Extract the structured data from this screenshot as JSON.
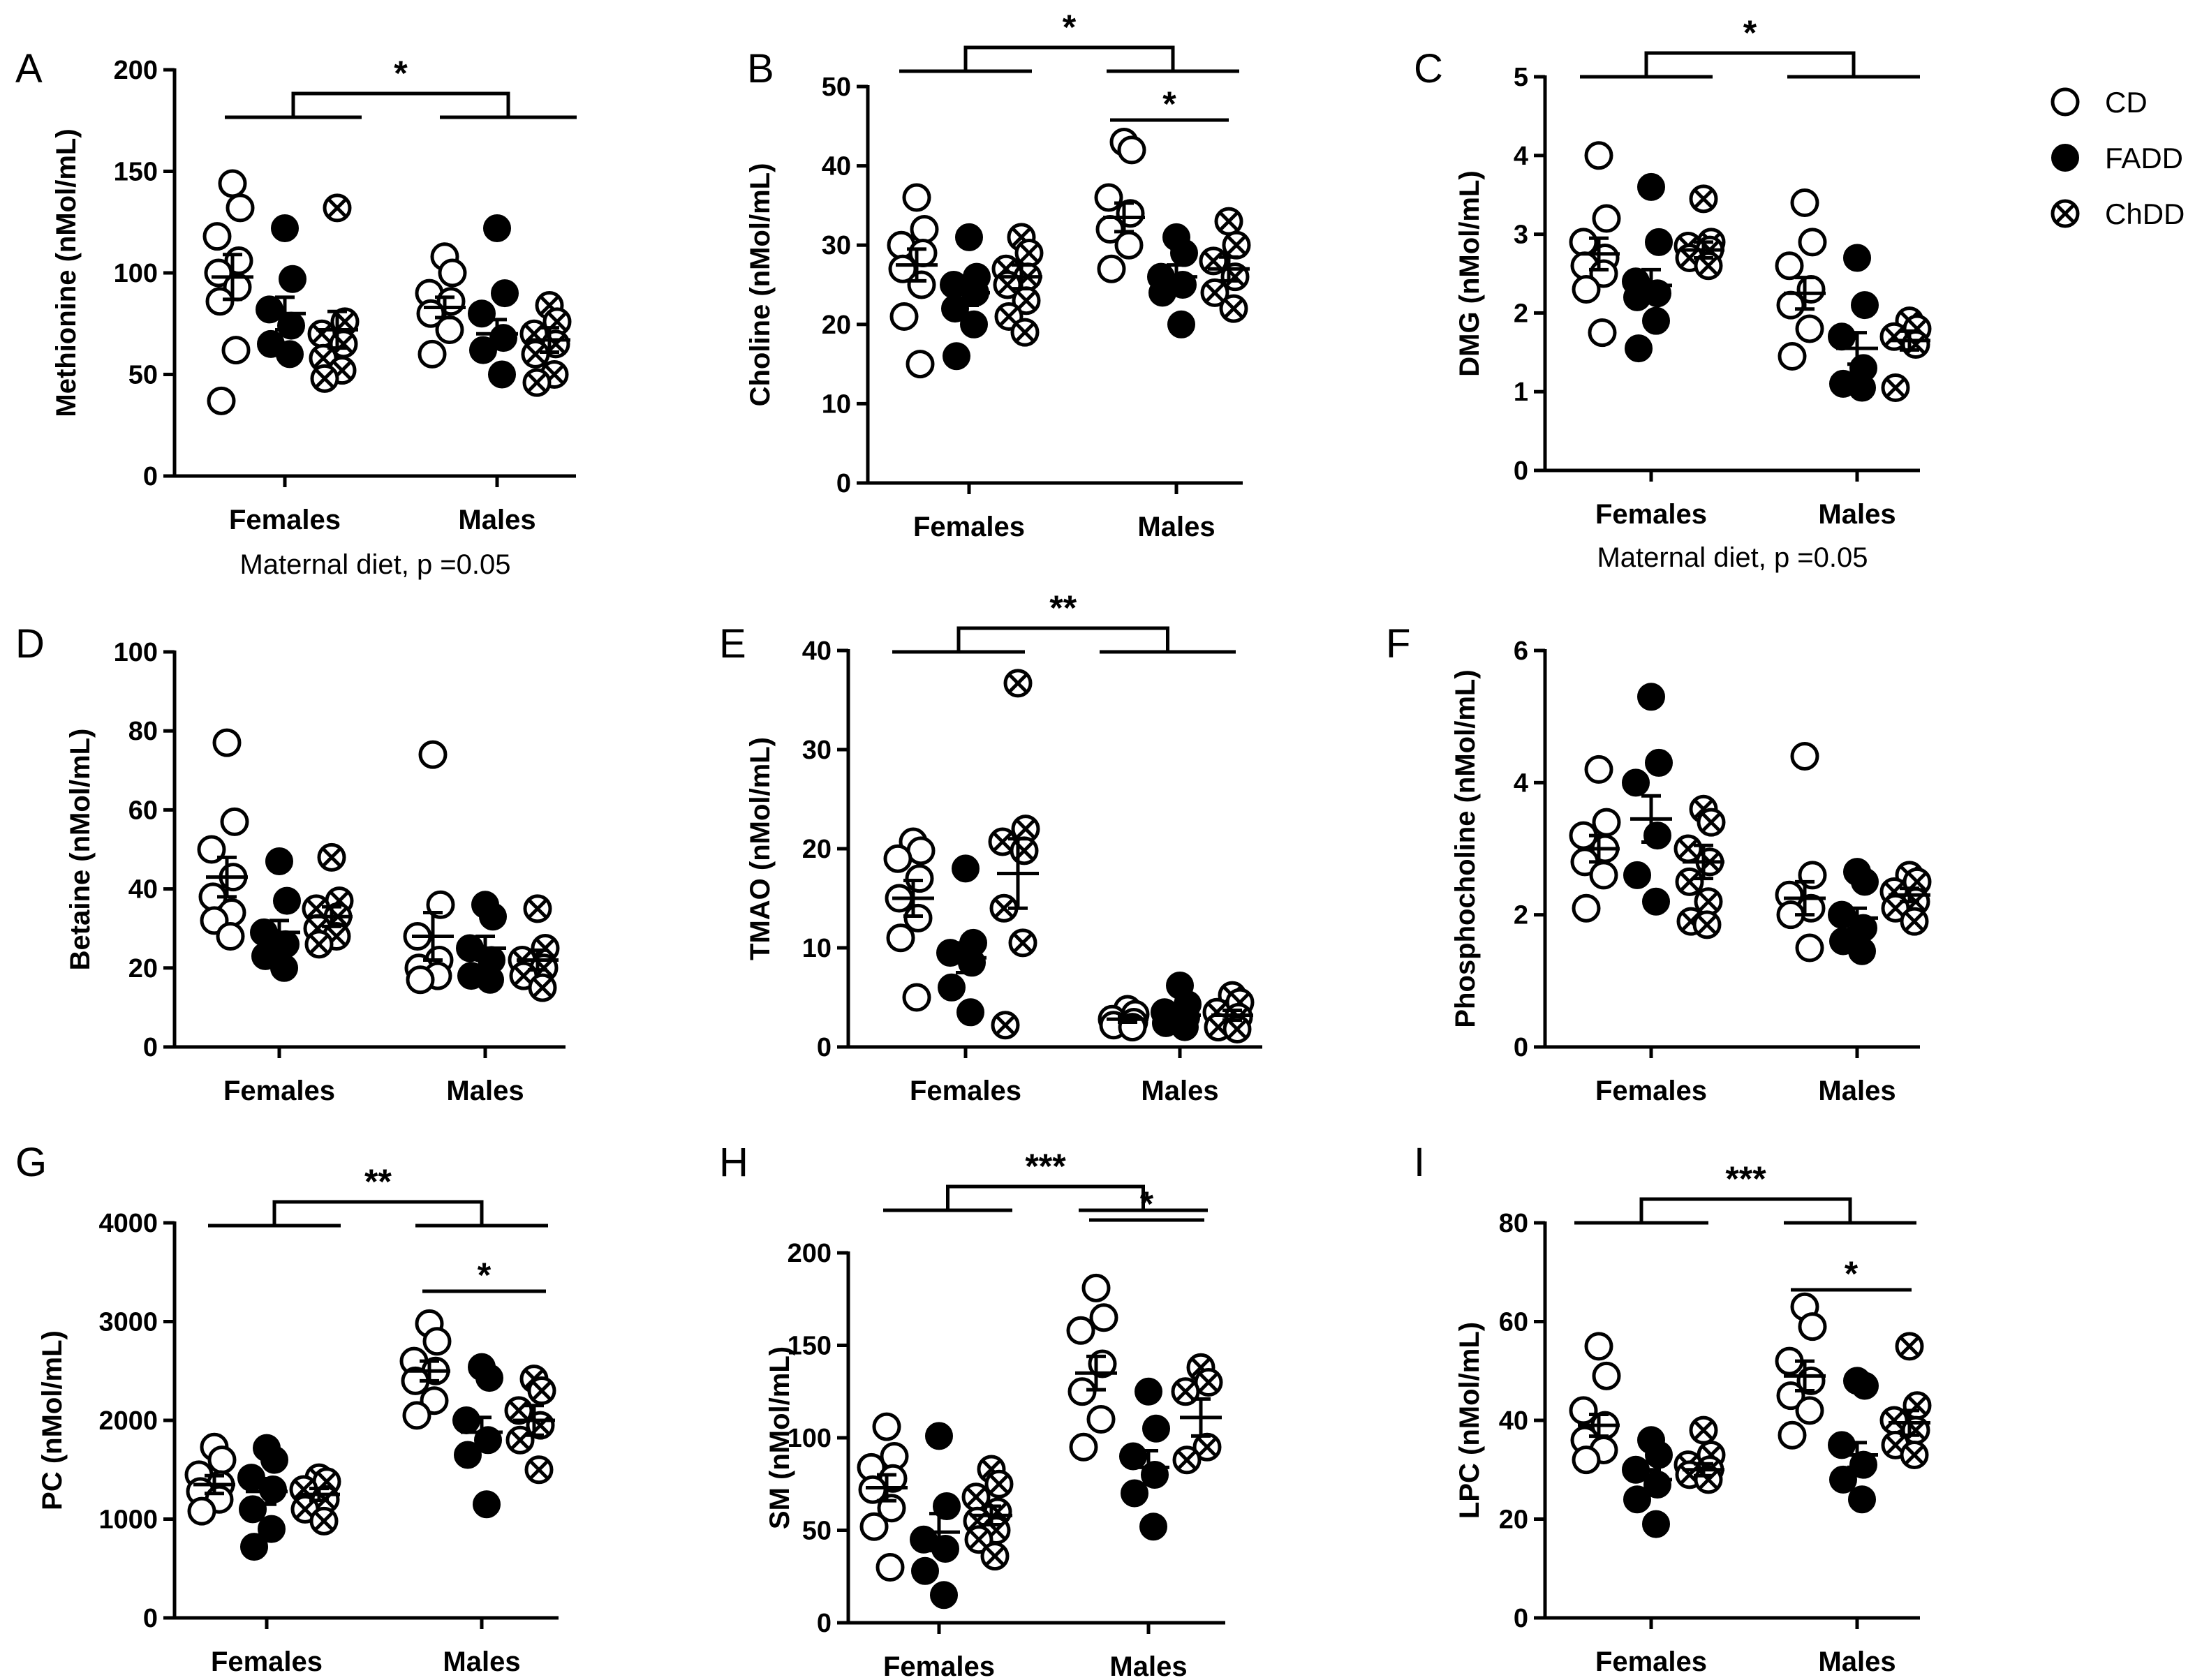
{
  "legend": [
    {
      "key": "CD",
      "label": "CD",
      "marker": "open-circle"
    },
    {
      "key": "FADD",
      "label": "FADD",
      "marker": "filled-circle"
    },
    {
      "key": "ChDD",
      "label": "ChDD",
      "marker": "crossed-circle"
    }
  ],
  "chart_data": [
    {
      "type": "scatter",
      "panel": "A",
      "ylabel": "Methionine (nMol/mL)",
      "ylim": [
        0,
        200
      ],
      "yticks": [
        0,
        50,
        100,
        150,
        200
      ],
      "categories": [
        "Females",
        "Males"
      ],
      "groups": [
        {
          "category": "Females",
          "series": "CD",
          "mean": 98,
          "sem": 11,
          "points": [
            144,
            132,
            118,
            106,
            100,
            93,
            86,
            62,
            37
          ]
        },
        {
          "category": "Females",
          "series": "FADD",
          "mean": 80,
          "sem": 8,
          "points": [
            122,
            97,
            82,
            74,
            65,
            60
          ]
        },
        {
          "category": "Females",
          "series": "ChDD",
          "mean": 72,
          "sem": 9,
          "points": [
            132,
            76,
            70,
            65,
            58,
            52,
            48
          ]
        },
        {
          "category": "Males",
          "series": "CD",
          "mean": 83,
          "sem": 5,
          "points": [
            108,
            100,
            90,
            86,
            80,
            72,
            60
          ]
        },
        {
          "category": "Males",
          "series": "FADD",
          "mean": 70,
          "sem": 7,
          "points": [
            122,
            90,
            80,
            68,
            62,
            50
          ]
        },
        {
          "category": "Males",
          "series": "ChDD",
          "mean": 67,
          "sem": 6,
          "points": [
            84,
            76,
            70,
            65,
            60,
            50,
            46
          ]
        }
      ],
      "brackets": [
        {
          "label": "*",
          "type": "sex"
        }
      ],
      "note": "Maternal diet, p =0.05"
    },
    {
      "type": "scatter",
      "panel": "B",
      "ylabel": "Choline (nMol/mL)",
      "ylim": [
        0,
        50
      ],
      "yticks": [
        0,
        10,
        20,
        30,
        40,
        50
      ],
      "categories": [
        "Females",
        "Males"
      ],
      "groups": [
        {
          "category": "Females",
          "series": "CD",
          "mean": 27.5,
          "sem": 2,
          "points": [
            36,
            32,
            30,
            29,
            27,
            25,
            21,
            15
          ]
        },
        {
          "category": "Females",
          "series": "FADD",
          "mean": 24,
          "sem": 1.6,
          "points": [
            31,
            26,
            25,
            24,
            22,
            20,
            16
          ]
        },
        {
          "category": "Females",
          "series": "ChDD",
          "mean": 26,
          "sem": 1.5,
          "points": [
            31,
            29,
            27,
            26,
            25,
            23,
            21,
            19
          ]
        },
        {
          "category": "Males",
          "series": "CD",
          "mean": 33.5,
          "sem": 1.8,
          "points": [
            43,
            42,
            36,
            34,
            32,
            30,
            27
          ]
        },
        {
          "category": "Males",
          "series": "FADD",
          "mean": 26,
          "sem": 1.5,
          "points": [
            31,
            29,
            26,
            25,
            24,
            20
          ]
        },
        {
          "category": "Males",
          "series": "ChDD",
          "mean": 27,
          "sem": 1.5,
          "points": [
            33,
            30,
            28,
            26,
            24,
            22
          ]
        }
      ],
      "brackets": [
        {
          "label": "*",
          "type": "sex"
        },
        {
          "label": "*",
          "type": "within-males"
        }
      ]
    },
    {
      "type": "scatter",
      "panel": "C",
      "ylabel": "DMG (nMol/mL)",
      "ylim": [
        0,
        5
      ],
      "yticks": [
        0,
        1,
        2,
        3,
        4,
        5
      ],
      "categories": [
        "Females",
        "Males"
      ],
      "groups": [
        {
          "category": "Females",
          "series": "CD",
          "mean": 2.75,
          "sem": 0.2,
          "points": [
            4.0,
            3.2,
            2.9,
            2.7,
            2.6,
            2.5,
            2.3,
            1.75
          ]
        },
        {
          "category": "Females",
          "series": "FADD",
          "mean": 2.35,
          "sem": 0.2,
          "points": [
            3.6,
            2.9,
            2.4,
            2.25,
            2.2,
            1.9,
            1.55
          ]
        },
        {
          "category": "Females",
          "series": "ChDD",
          "mean": 2.8,
          "sem": 0.1,
          "points": [
            3.45,
            2.9,
            2.85,
            2.8,
            2.7,
            2.6
          ]
        },
        {
          "category": "Males",
          "series": "CD",
          "mean": 2.25,
          "sem": 0.2,
          "points": [
            3.4,
            2.9,
            2.6,
            2.3,
            2.1,
            1.8,
            1.45
          ]
        },
        {
          "category": "Males",
          "series": "FADD",
          "mean": 1.55,
          "sem": 0.2,
          "points": [
            2.7,
            2.1,
            1.7,
            1.3,
            1.1,
            1.05
          ]
        },
        {
          "category": "Males",
          "series": "ChDD",
          "mean": 1.65,
          "sem": 0.12,
          "points": [
            1.9,
            1.8,
            1.7,
            1.6,
            1.05
          ]
        }
      ],
      "brackets": [
        {
          "label": "*",
          "type": "sex"
        }
      ],
      "note": "Maternal diet, p =0.05"
    },
    {
      "type": "scatter",
      "panel": "D",
      "ylabel": "Betaine (nMol/mL)",
      "ylim": [
        0,
        100
      ],
      "yticks": [
        0,
        20,
        40,
        60,
        80,
        100
      ],
      "categories": [
        "Females",
        "Males"
      ],
      "groups": [
        {
          "category": "Females",
          "series": "CD",
          "mean": 43,
          "sem": 5,
          "points": [
            77,
            57,
            50,
            43,
            38,
            34,
            32,
            28
          ]
        },
        {
          "category": "Females",
          "series": "FADD",
          "mean": 29,
          "sem": 3,
          "points": [
            47,
            37,
            29,
            26,
            23,
            20
          ]
        },
        {
          "category": "Females",
          "series": "ChDD",
          "mean": 33,
          "sem": 2.5,
          "points": [
            48,
            37,
            35,
            33,
            30,
            28,
            26
          ]
        },
        {
          "category": "Males",
          "series": "CD",
          "mean": 28,
          "sem": 6,
          "points": [
            74,
            36,
            28,
            22,
            20,
            18,
            17
          ]
        },
        {
          "category": "Males",
          "series": "FADD",
          "mean": 25,
          "sem": 3,
          "points": [
            36,
            33,
            25,
            22,
            18,
            17
          ]
        },
        {
          "category": "Males",
          "series": "ChDD",
          "mean": 22,
          "sem": 2.5,
          "points": [
            35,
            25,
            22,
            20,
            18,
            15
          ]
        }
      ],
      "brackets": []
    },
    {
      "type": "scatter",
      "panel": "E",
      "ylabel": "TMAO (nMol/mL)",
      "ylim": [
        0,
        40
      ],
      "yticks": [
        0,
        10,
        20,
        30,
        40
      ],
      "categories": [
        "Females",
        "Males"
      ],
      "groups": [
        {
          "category": "Females",
          "series": "CD",
          "mean": 15,
          "sem": 1.8,
          "points": [
            20.7,
            19.8,
            19,
            17,
            15,
            13,
            11,
            5
          ]
        },
        {
          "category": "Females",
          "series": "FADD",
          "mean": 9,
          "sem": 1.5,
          "points": [
            18,
            10.5,
            9.5,
            8.5,
            6,
            3.5
          ]
        },
        {
          "category": "Females",
          "series": "ChDD",
          "mean": 17.5,
          "sem": 3.5,
          "points": [
            36.7,
            22,
            20.7,
            19.8,
            14,
            10.5,
            2.2
          ]
        },
        {
          "category": "Males",
          "series": "CD",
          "mean": 2.8,
          "sem": 0.3,
          "points": [
            3.8,
            3.3,
            2.8,
            2.5,
            2.2,
            2.0
          ]
        },
        {
          "category": "Males",
          "series": "FADD",
          "mean": 3.2,
          "sem": 0.5,
          "points": [
            6.2,
            4.3,
            3.5,
            3.0,
            2.4,
            2.0
          ]
        },
        {
          "category": "Males",
          "series": "ChDD",
          "mean": 3.2,
          "sem": 0.5,
          "points": [
            5.2,
            4.5,
            3.5,
            3.0,
            2.0,
            1.8
          ]
        }
      ],
      "brackets": [
        {
          "label": "**",
          "type": "sex"
        }
      ]
    },
    {
      "type": "scatter",
      "panel": "F",
      "ylabel": "Phosphocholine (nMol/mL)",
      "ylim": [
        0,
        6
      ],
      "yticks": [
        0,
        2,
        4,
        6
      ],
      "categories": [
        "Females",
        "Males"
      ],
      "groups": [
        {
          "category": "Females",
          "series": "CD",
          "mean": 3.0,
          "sem": 0.2,
          "points": [
            4.2,
            3.4,
            3.2,
            3.0,
            2.8,
            2.6,
            2.1
          ]
        },
        {
          "category": "Females",
          "series": "FADD",
          "mean": 3.45,
          "sem": 0.35,
          "points": [
            5.3,
            4.3,
            4.0,
            3.2,
            2.6,
            2.2
          ]
        },
        {
          "category": "Females",
          "series": "ChDD",
          "mean": 2.8,
          "sem": 0.25,
          "points": [
            3.6,
            3.4,
            3.0,
            2.8,
            2.5,
            2.2,
            1.9,
            1.85
          ]
        },
        {
          "category": "Males",
          "series": "CD",
          "mean": 2.25,
          "sem": 0.25,
          "points": [
            4.4,
            2.6,
            2.3,
            2.1,
            2.0,
            1.5
          ]
        },
        {
          "category": "Males",
          "series": "FADD",
          "mean": 1.95,
          "sem": 0.15,
          "points": [
            2.65,
            2.5,
            2.0,
            1.8,
            1.6,
            1.45
          ]
        },
        {
          "category": "Males",
          "series": "ChDD",
          "mean": 2.3,
          "sem": 0.1,
          "points": [
            2.6,
            2.5,
            2.35,
            2.2,
            2.1,
            1.9
          ]
        }
      ],
      "brackets": []
    },
    {
      "type": "scatter",
      "panel": "G",
      "ylabel": "PC (nMol/mL)",
      "ylim": [
        0,
        4000
      ],
      "yticks": [
        0,
        1000,
        2000,
        3000,
        4000
      ],
      "categories": [
        "Females",
        "Males"
      ],
      "groups": [
        {
          "category": "Females",
          "series": "CD",
          "mean": 1350,
          "sem": 90,
          "points": [
            1730,
            1600,
            1450,
            1350,
            1280,
            1200,
            1080
          ]
        },
        {
          "category": "Females",
          "series": "FADD",
          "mean": 1280,
          "sem": 130,
          "points": [
            1720,
            1600,
            1420,
            1300,
            1100,
            900,
            720
          ]
        },
        {
          "category": "Females",
          "series": "ChDD",
          "mean": 1250,
          "sem": 60,
          "points": [
            1420,
            1380,
            1300,
            1200,
            1100,
            980
          ]
        },
        {
          "category": "Males",
          "series": "CD",
          "mean": 2500,
          "sem": 100,
          "points": [
            2980,
            2800,
            2600,
            2500,
            2400,
            2200,
            2050
          ]
        },
        {
          "category": "Males",
          "series": "FADD",
          "mean": 1880,
          "sem": 150,
          "points": [
            2540,
            2430,
            2000,
            1800,
            1650,
            1150
          ]
        },
        {
          "category": "Males",
          "series": "ChDD",
          "mean": 2000,
          "sem": 150,
          "points": [
            2420,
            2300,
            2100,
            1950,
            1800,
            1500
          ]
        }
      ],
      "brackets": [
        {
          "label": "**",
          "type": "sex"
        },
        {
          "label": "*",
          "type": "within-males"
        }
      ]
    },
    {
      "type": "scatter",
      "panel": "H",
      "ylabel": "SM (nMol/mL)",
      "ylim": [
        0,
        200
      ],
      "yticks": [
        0,
        50,
        100,
        150,
        200
      ],
      "categories": [
        "Females",
        "Males"
      ],
      "groups": [
        {
          "category": "Females",
          "series": "CD",
          "mean": 73,
          "sem": 7,
          "points": [
            106,
            90,
            84,
            78,
            72,
            62,
            52,
            30
          ]
        },
        {
          "category": "Females",
          "series": "FADD",
          "mean": 49,
          "sem": 10,
          "points": [
            101,
            63,
            45,
            40,
            28,
            15
          ]
        },
        {
          "category": "Females",
          "series": "ChDD",
          "mean": 58,
          "sem": 5,
          "points": [
            83,
            75,
            68,
            60,
            55,
            50,
            45,
            36
          ]
        },
        {
          "category": "Males",
          "series": "CD",
          "mean": 135,
          "sem": 9,
          "points": [
            181,
            165,
            158,
            140,
            125,
            110,
            95
          ]
        },
        {
          "category": "Males",
          "series": "FADD",
          "mean": 84,
          "sem": 9,
          "points": [
            125,
            105,
            90,
            80,
            70,
            52
          ]
        },
        {
          "category": "Males",
          "series": "ChDD",
          "mean": 111,
          "sem": 10,
          "points": [
            138,
            130,
            125,
            95,
            88
          ]
        }
      ],
      "brackets": [
        {
          "label": "***",
          "type": "sex"
        },
        {
          "label": "*",
          "type": "within-males"
        }
      ]
    },
    {
      "type": "scatter",
      "panel": "I",
      "ylabel": "LPC (nMol/mL)",
      "ylim": [
        0,
        80
      ],
      "yticks": [
        0,
        20,
        40,
        60,
        80
      ],
      "categories": [
        "Females",
        "Males"
      ],
      "groups": [
        {
          "category": "Females",
          "series": "CD",
          "mean": 39,
          "sem": 2.2,
          "points": [
            55,
            49,
            42,
            39,
            36,
            34,
            32
          ]
        },
        {
          "category": "Females",
          "series": "FADD",
          "mean": 28,
          "sem": 2,
          "points": [
            36,
            33,
            30,
            27,
            24,
            19
          ]
        },
        {
          "category": "Females",
          "series": "ChDD",
          "mean": 30,
          "sem": 1.2,
          "points": [
            38,
            33,
            31,
            30,
            29,
            28
          ]
        },
        {
          "category": "Males",
          "series": "CD",
          "mean": 49,
          "sem": 3,
          "points": [
            63,
            59,
            52,
            48,
            45,
            42,
            37
          ]
        },
        {
          "category": "Males",
          "series": "FADD",
          "mean": 33,
          "sem": 2.5,
          "points": [
            48,
            47,
            35,
            31,
            28,
            24
          ]
        },
        {
          "category": "Males",
          "series": "ChDD",
          "mean": 39.5,
          "sem": 2.5,
          "points": [
            55,
            43,
            40,
            38,
            35,
            33
          ]
        }
      ],
      "brackets": [
        {
          "label": "***",
          "type": "sex"
        },
        {
          "label": "*",
          "type": "within-males"
        }
      ]
    }
  ]
}
